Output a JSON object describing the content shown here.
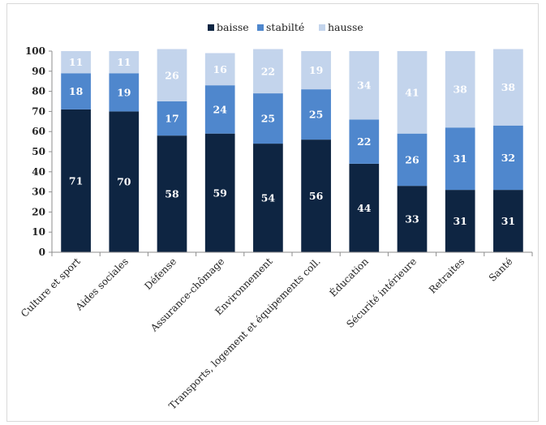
{
  "chart_data": {
    "type": "bar",
    "stacked": true,
    "title": "",
    "xlabel": "",
    "ylabel": "",
    "ylim": [
      0,
      100
    ],
    "yticks": [
      0,
      10,
      20,
      30,
      40,
      50,
      60,
      70,
      80,
      90,
      100
    ],
    "grid": false,
    "legend_position": "top",
    "categories": [
      "Culture et sport",
      "Aides sociales",
      "Défense",
      "Assurance-chômage",
      "Environnement",
      "Transports, logement et équipements coll.",
      "Éducation",
      "Sécurité intérieure",
      "Retraites",
      "Santé"
    ],
    "series": [
      {
        "name": "baisse",
        "color": "#0e2542",
        "values": [
          71,
          70,
          58,
          59,
          54,
          56,
          44,
          33,
          31,
          31
        ]
      },
      {
        "name": "stabilté",
        "color": "#4f87cd",
        "values": [
          18,
          19,
          17,
          24,
          25,
          25,
          22,
          26,
          31,
          32
        ]
      },
      {
        "name": "hausse",
        "color": "#c3d4ec",
        "values": [
          11,
          11,
          26,
          16,
          22,
          19,
          34,
          41,
          38,
          38
        ]
      }
    ]
  }
}
